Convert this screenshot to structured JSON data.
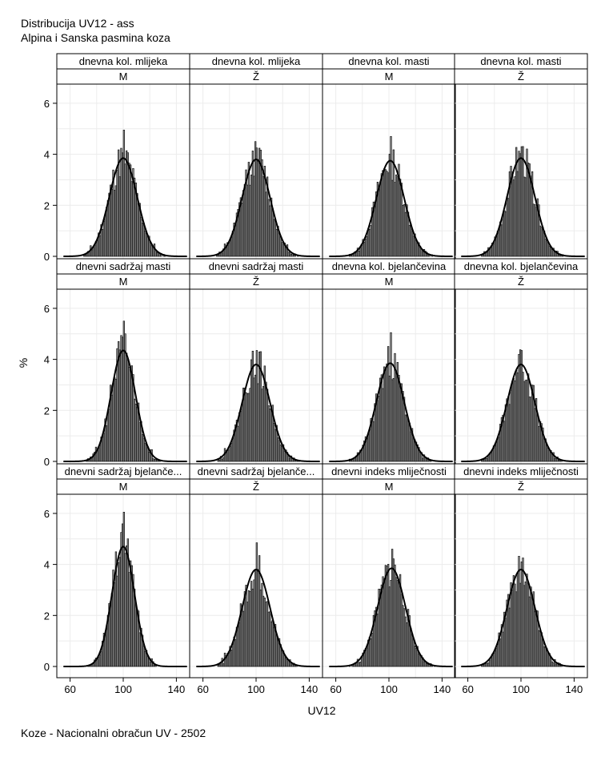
{
  "header": {
    "title": "Distribucija UV12 - ass",
    "subtitle": "Alpina i Sanska pasmina koza"
  },
  "footnote": "Koze - Nacionalni obračun UV - 2502",
  "chart_data": {
    "type": "histogram-panel-grid",
    "xlabel": "UV12",
    "ylabel": "%",
    "xlim": [
      50,
      150
    ],
    "ylim": [
      0,
      6.5
    ],
    "x_ticks": [
      60,
      100,
      140
    ],
    "y_ticks": [
      0,
      2,
      4,
      6
    ],
    "grid": true,
    "overlay": "normal-density-curve",
    "panels": [
      {
        "trait": "dnevna kol. mlijeka",
        "sex": "M",
        "mean": 100,
        "sd": 10.5,
        "peak": 3.85,
        "max_bar": 4.95,
        "seed": 11
      },
      {
        "trait": "dnevna kol. mlijeka",
        "sex": "Ž",
        "mean": 100,
        "sd": 10.5,
        "peak": 3.8,
        "max_bar": 4.25,
        "seed": 12
      },
      {
        "trait": "dnevna kol. masti",
        "sex": "M",
        "mean": 101,
        "sd": 10.5,
        "peak": 3.75,
        "max_bar": 4.7,
        "seed": 13
      },
      {
        "trait": "dnevna kol. masti",
        "sex": "Ž",
        "mean": 100,
        "sd": 10.5,
        "peak": 3.85,
        "max_bar": 4.3,
        "seed": 14
      },
      {
        "trait": "dnevni sadržaj masti",
        "sex": "M",
        "mean": 100,
        "sd": 9.2,
        "peak": 4.35,
        "max_bar": 5.5,
        "seed": 21
      },
      {
        "trait": "dnevni sadržaj masti",
        "sex": "Ž",
        "mean": 100,
        "sd": 10.5,
        "peak": 3.8,
        "max_bar": 4.35,
        "seed": 22
      },
      {
        "trait": "dnevna kol. bjelančevina",
        "sex": "M",
        "mean": 101,
        "sd": 10.5,
        "peak": 3.85,
        "max_bar": 5.05,
        "seed": 23
      },
      {
        "trait": "dnevna kol. bjelančevina",
        "sex": "Ž",
        "mean": 100,
        "sd": 10.5,
        "peak": 3.8,
        "max_bar": 4.35,
        "seed": 24
      },
      {
        "trait": "dnevni sadržaj bjelanče...",
        "sex": "M",
        "mean": 100,
        "sd": 8.5,
        "peak": 4.7,
        "max_bar": 6.05,
        "seed": 31
      },
      {
        "trait": "dnevni sadržaj bjelanče...",
        "sex": "Ž",
        "mean": 100,
        "sd": 10.5,
        "peak": 3.8,
        "max_bar": 4.85,
        "seed": 32
      },
      {
        "trait": "dnevni indeks mliječnosti",
        "sex": "M",
        "mean": 102,
        "sd": 10.5,
        "peak": 3.85,
        "max_bar": 4.6,
        "seed": 33
      },
      {
        "trait": "dnevni indeks mliječnosti",
        "sex": "Ž",
        "mean": 100,
        "sd": 10.5,
        "peak": 3.8,
        "max_bar": 4.1,
        "seed": 34
      }
    ]
  }
}
